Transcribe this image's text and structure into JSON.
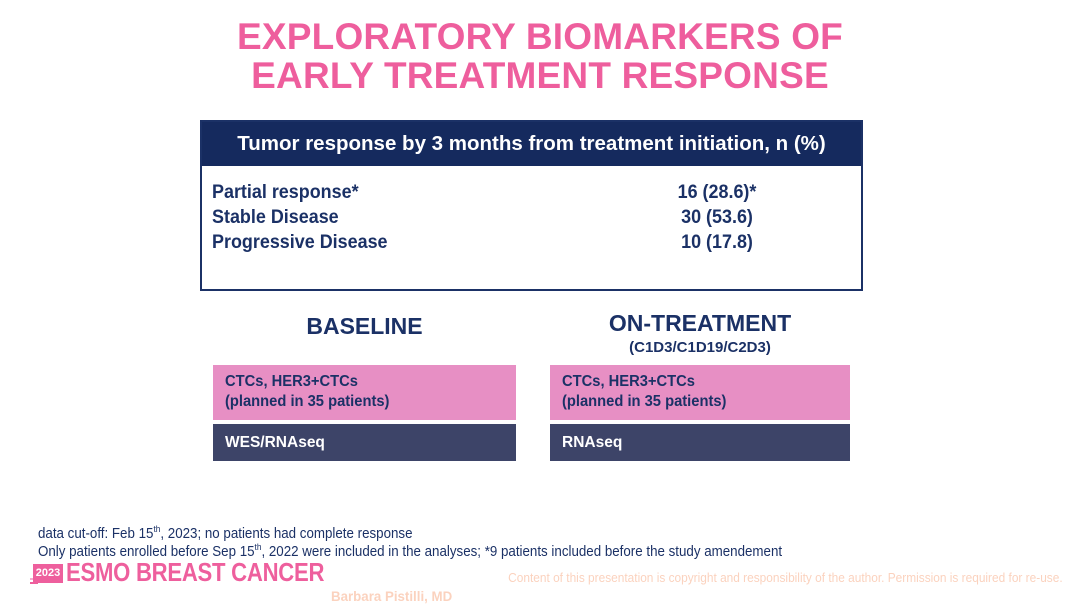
{
  "slide": {
    "title_line1": "EXPLORATORY BIOMARKERS OF",
    "title_line2": "EARLY TREATMENT RESPONSE"
  },
  "response_table": {
    "header": "Tumor response by 3 months from treatment initiation, n (%)",
    "rows": [
      {
        "label": "Partial response*",
        "value": "16 (28.6)*"
      },
      {
        "label": "Stable Disease",
        "value": "30 (53.6)"
      },
      {
        "label": "Progressive Disease",
        "value": "10 (17.8)"
      }
    ]
  },
  "columns": {
    "baseline": {
      "heading": "BASELINE",
      "pink_box_line1": "CTCs, HER3+CTCs",
      "pink_box_line2": "(planned in 35 patients)",
      "navy_box_label": "WES/RNAseq"
    },
    "on_treatment": {
      "heading": "ON-TREATMENT",
      "subheading": "(C1D3/C1D19/C2D3)",
      "pink_box_line1": "CTCs, HER3+CTCs",
      "pink_box_line2": "(planned in 35 patients)",
      "navy_box_label": "RNAseq"
    }
  },
  "footnotes": {
    "line1": {
      "pre": "data cut-off: Feb 15",
      "sup": "th",
      "post": ", 2023; no patients had complete response"
    },
    "line2": {
      "pre": "Only patients enrolled before Sep 15",
      "sup": "th",
      "post": ", 2022 were included in the analyses; *9 patients included before the study amendement"
    }
  },
  "footer": {
    "logo_year": "2023",
    "logo_text": "ESMO BREAST CANCER",
    "copyright": "Content of this presentation is copyright and responsibility of the author. Permission is required for re-use.",
    "author": "Barbara Pistilli, MD"
  },
  "colors": {
    "title_pink": "#EE5E9D",
    "table_header_navy": "#152A5E",
    "text_navy": "#1B3166",
    "pink_box_fill": "#E78FC4",
    "navy_box_fill": "#3D4468",
    "logo_pink": "#EE5F9D",
    "copyright_peach": "#FBD2BE"
  }
}
